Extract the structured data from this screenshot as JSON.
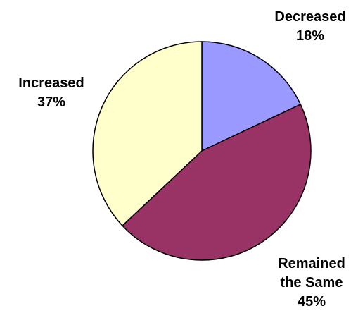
{
  "chart_data": {
    "type": "pie",
    "title": "",
    "slices": [
      {
        "label": "Decreased",
        "value": 18,
        "value_label": "18%",
        "color": "#9999ff"
      },
      {
        "label": "Remained the Same",
        "value": 45,
        "value_label": "45%",
        "color": "#993366"
      },
      {
        "label": "Increased",
        "value": 37,
        "value_label": "37%",
        "color": "#ffffcc"
      }
    ],
    "start_angle": "12 o'clock",
    "direction": "clockwise",
    "legend": "none",
    "labels": "outside, bold, label above percentage"
  }
}
